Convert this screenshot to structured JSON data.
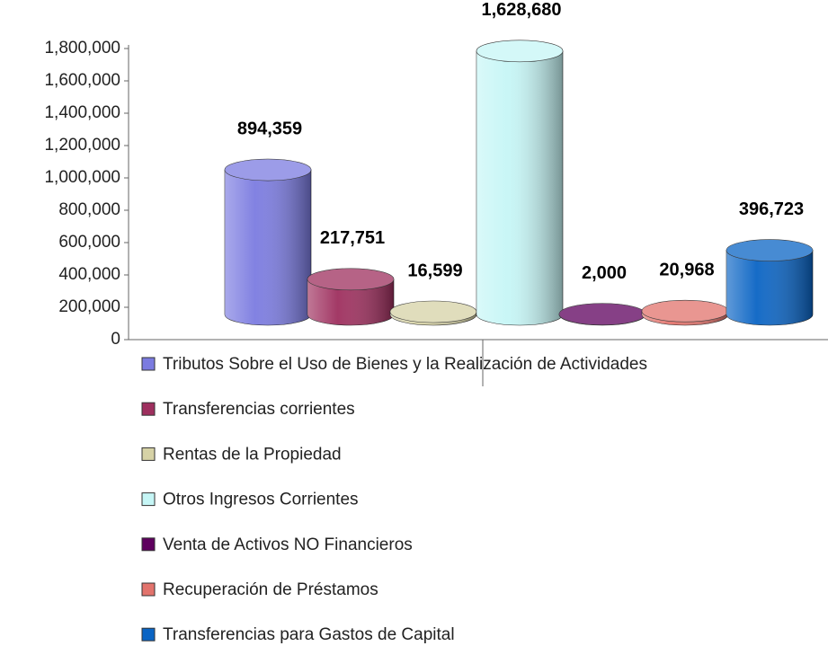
{
  "chart_data": {
    "type": "cylinder",
    "categories": [
      "Tributos Sobre el Uso de Bienes y la Realización de Actividades",
      "Transferencias corrientes",
      "Rentas de la Propiedad",
      "Otros Ingresos Corrientes",
      "Venta de Activos NO Financieros",
      "Recuperación de Préstamos",
      "Transferencias para Gastos de Capital"
    ],
    "values": [
      894359,
      217751,
      16599,
      1628680,
      2000,
      20968,
      396723
    ],
    "value_labels": [
      "894,359",
      "217,751",
      "16,599",
      "1,628,680",
      "2,000",
      "20,968",
      "396,723"
    ],
    "colors": [
      "#7b7be0",
      "#9e2f5e",
      "#d6d2a6",
      "#c6f6f6",
      "#5e005e",
      "#e2736c",
      "#0a64c4"
    ],
    "ylim": [
      0,
      1800000
    ],
    "yticks": [
      0,
      {
        "value": 200000,
        "label": "200,000"
      },
      {
        "value": 400000,
        "label": "400,000"
      },
      {
        "value": 600000,
        "label": "600,000"
      },
      {
        "value": 800000,
        "label": "800,000"
      },
      {
        "value": 1000000,
        "label": "1,000,000"
      },
      {
        "value": 1200000,
        "label": "1,200,000"
      },
      {
        "value": 1400000,
        "label": "1,400,000"
      },
      {
        "value": 1600000,
        "label": "1,600,000"
      },
      {
        "value": 1800000,
        "label": "1,800,000"
      }
    ],
    "legend": "bottom"
  }
}
